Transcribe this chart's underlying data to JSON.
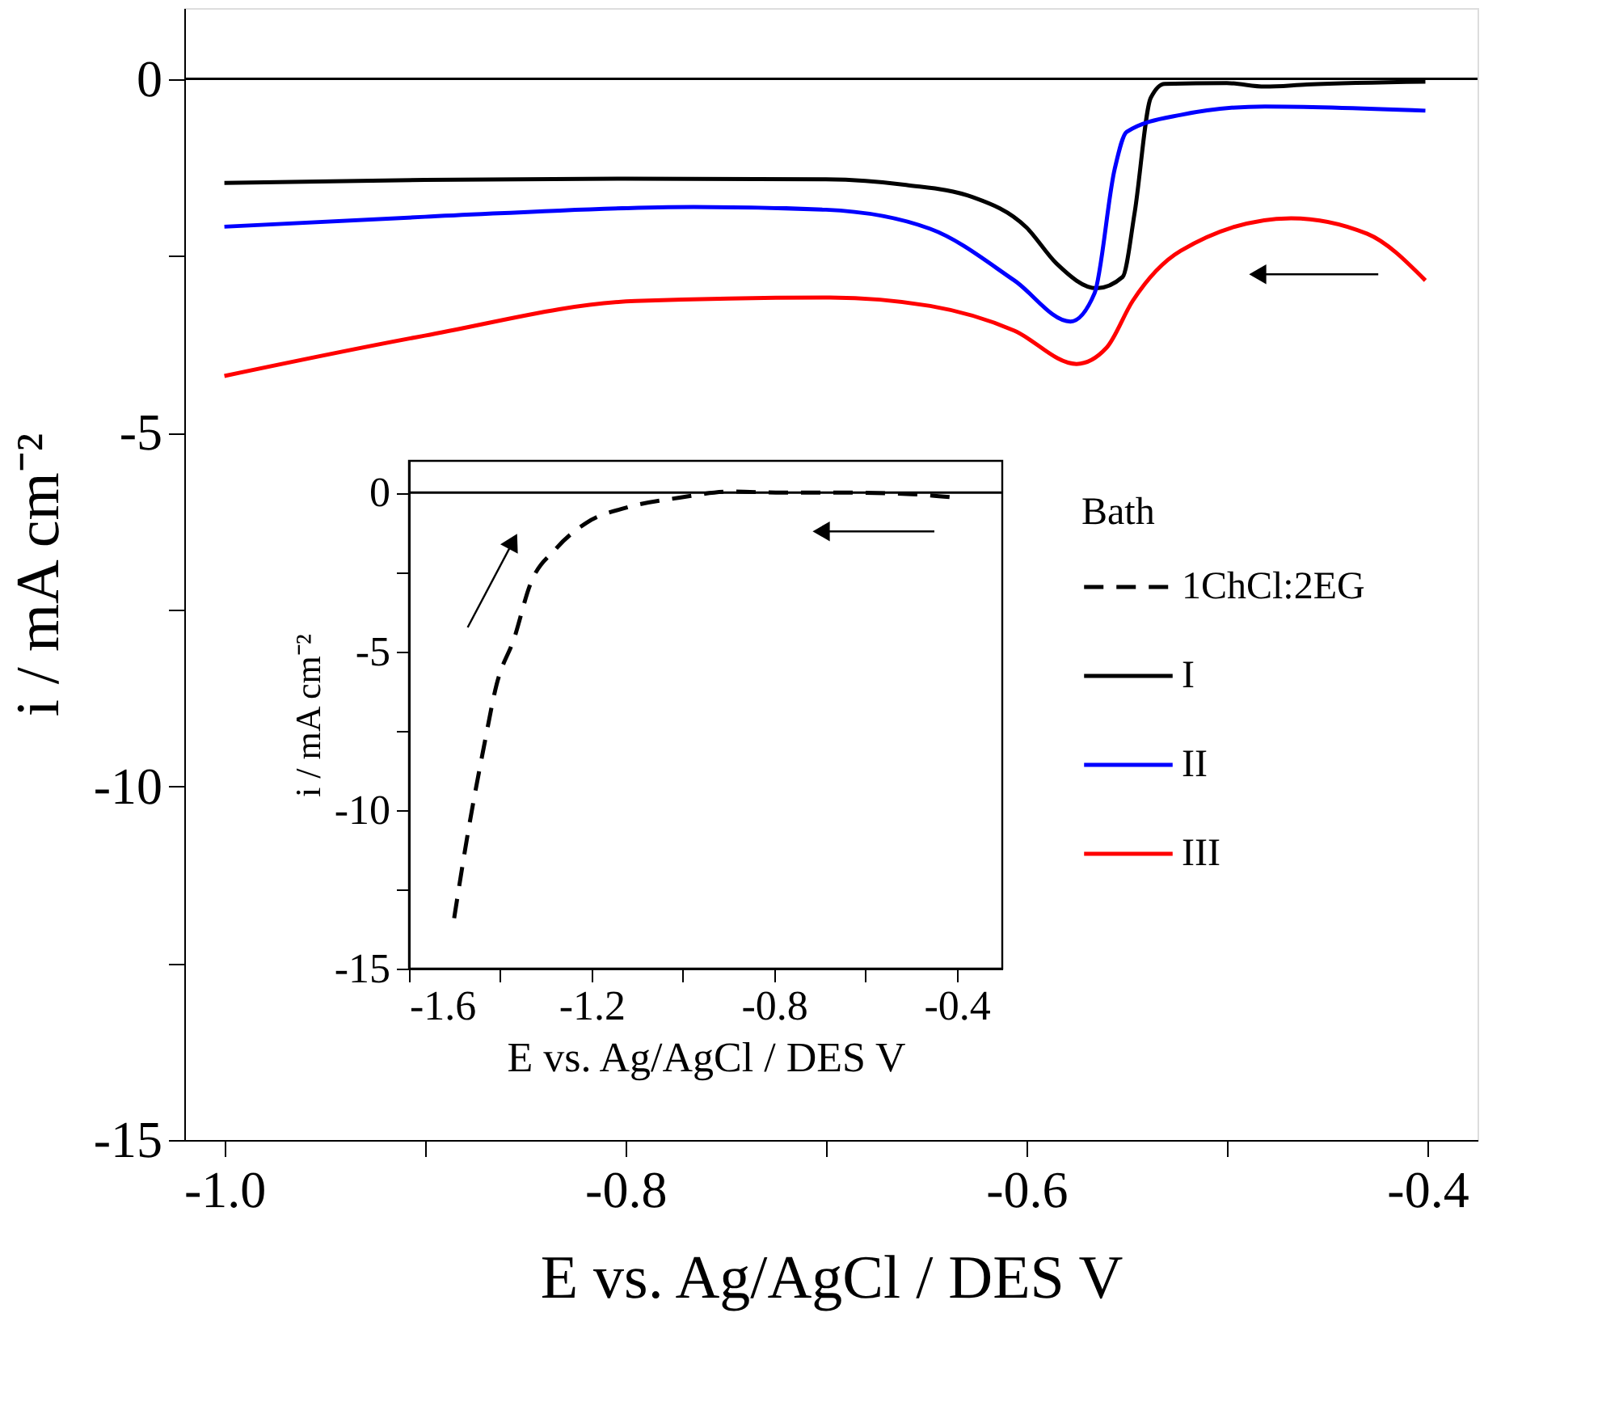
{
  "chart_data": [
    {
      "type": "line",
      "xlabel": "E vs. Ag/AgCl / DES V",
      "ylabel": "i / mA cm⁻²",
      "legend_title": "Bath",
      "legend": "right",
      "line_style": "solid",
      "xlim": [
        -1.02,
        -0.375
      ],
      "ylim": [
        -15,
        1
      ],
      "xticks": [
        {
          "value": -1.0,
          "label": "-1.0"
        },
        {
          "value": -0.9,
          "label": null
        },
        {
          "value": -0.8,
          "label": "-0.8"
        },
        {
          "value": -0.7,
          "label": null
        },
        {
          "value": -0.6,
          "label": "-0.6"
        },
        {
          "value": -0.5,
          "label": null
        },
        {
          "value": -0.4,
          "label": "-0.4"
        }
      ],
      "yticks": [
        0,
        {
          "value": -2.5,
          "label": null
        },
        -5,
        {
          "value": -7.5,
          "label": null
        },
        -10,
        {
          "value": -12.5,
          "label": null
        },
        -15
      ],
      "ref_lines": [
        {
          "axis": "y",
          "value": 0,
          "color": "#000000"
        }
      ],
      "series": [
        {
          "name": "I",
          "color": "#000000",
          "x": [
            -1.0,
            -0.9,
            -0.8,
            -0.7,
            -0.66,
            -0.627,
            -0.6,
            -0.585,
            -0.565,
            -0.552,
            -0.546,
            -0.538,
            -0.531,
            -0.5,
            -0.481,
            -0.46,
            -0.401
          ],
          "values": [
            -1.47,
            -1.43,
            -1.41,
            -1.42,
            -1.5,
            -1.67,
            -2.1,
            -2.61,
            -2.96,
            -2.8,
            -1.89,
            -0.27,
            -0.07,
            -0.06,
            -0.11,
            -0.08,
            -0.04
          ]
        },
        {
          "name": "II",
          "color": "#0000ff",
          "x": [
            -1.0,
            -0.9,
            -0.766,
            -0.7,
            -0.648,
            -0.606,
            -0.578,
            -0.566,
            -0.556,
            -0.55,
            -0.523,
            -0.481,
            -0.401
          ],
          "values": [
            -2.09,
            -1.95,
            -1.81,
            -1.85,
            -2.12,
            -2.85,
            -3.43,
            -3.03,
            -1.28,
            -0.75,
            -0.51,
            -0.39,
            -0.45
          ]
        },
        {
          "name": "III",
          "color": "#ff0000",
          "x": [
            -1.0,
            -0.9,
            -0.795,
            -0.698,
            -0.648,
            -0.606,
            -0.575,
            -0.56,
            -0.547,
            -0.523,
            -0.468,
            -0.43,
            -0.401
          ],
          "values": [
            -4.2,
            -3.63,
            -3.14,
            -3.09,
            -3.21,
            -3.56,
            -4.03,
            -3.8,
            -3.14,
            -2.43,
            -1.97,
            -2.19,
            -2.85
          ]
        }
      ]
    },
    {
      "type": "line",
      "xlabel": "E vs. Ag/AgCl / DES V",
      "ylabel": "i / mA cm⁻²",
      "line_style": "dashed",
      "xlim": [
        -1.6,
        -0.3
      ],
      "ylim": [
        -15,
        1
      ],
      "xticks": [
        {
          "value": -1.6,
          "label": "-1.6"
        },
        {
          "value": -1.4,
          "label": null
        },
        {
          "value": -1.2,
          "label": "-1.2"
        },
        {
          "value": -1.0,
          "label": null
        },
        {
          "value": -0.8,
          "label": "-0.8"
        },
        {
          "value": -0.6,
          "label": null
        },
        {
          "value": -0.4,
          "label": "-0.4"
        }
      ],
      "yticks": [
        0,
        {
          "value": -2.5,
          "label": null
        },
        -5,
        {
          "value": -7.5,
          "label": null
        },
        -10,
        {
          "value": -12.5,
          "label": null
        },
        -15
      ],
      "ref_lines": [
        {
          "axis": "y",
          "value": 0,
          "color": "#000000"
        }
      ],
      "series": [
        {
          "name": "1ChCl:2EG",
          "color": "#000000",
          "x": [
            -1.501,
            -1.47,
            -1.436,
            -1.408,
            -1.369,
            -1.335,
            -1.278,
            -1.211,
            -1.12,
            -1.007,
            -0.894,
            -0.782,
            -0.669,
            -0.499,
            -0.403
          ],
          "values": [
            -13.41,
            -10.65,
            -8.02,
            -6.05,
            -4.57,
            -2.92,
            -1.77,
            -0.95,
            -0.46,
            -0.16,
            0.03,
            0.0,
            0.0,
            -0.05,
            -0.16
          ]
        }
      ]
    }
  ]
}
